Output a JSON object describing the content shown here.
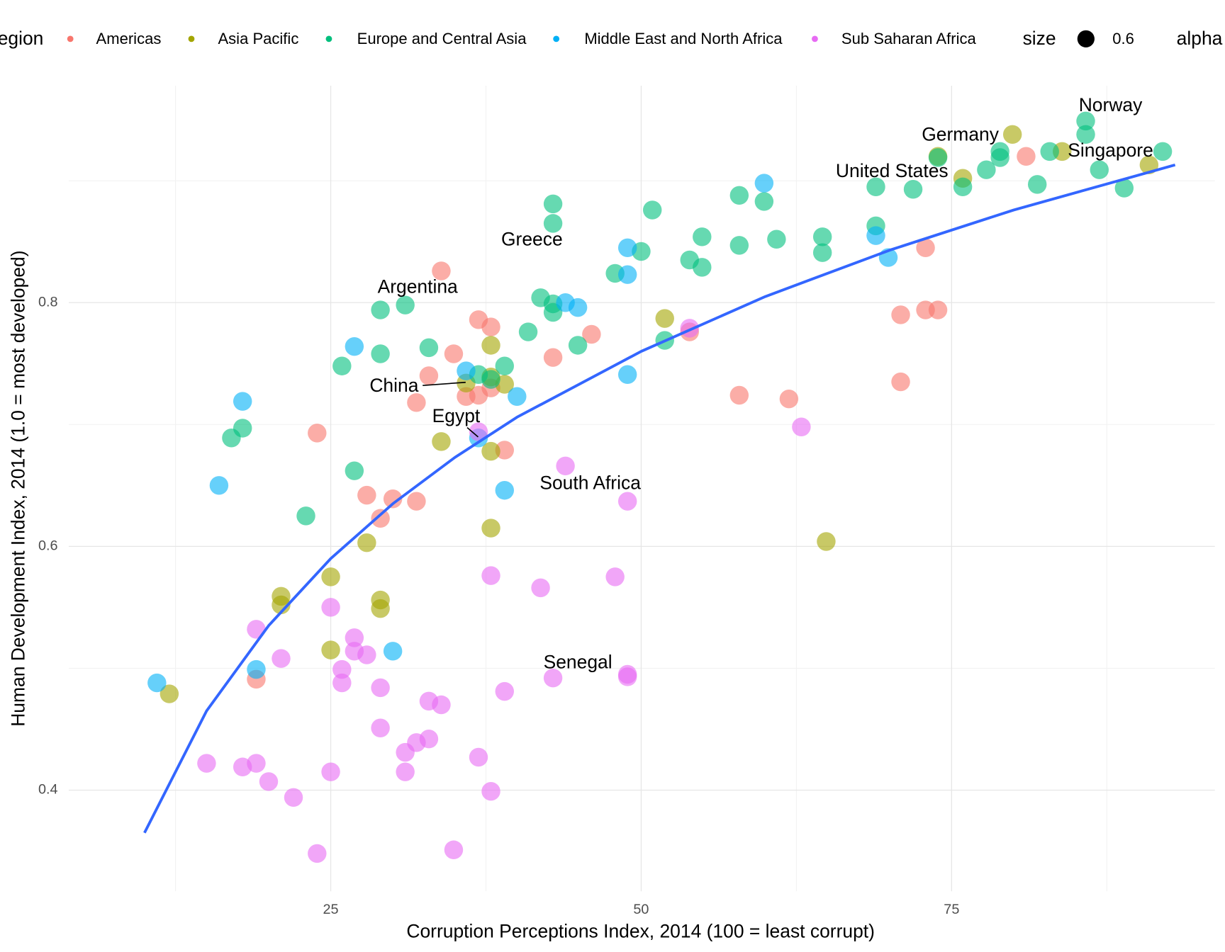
{
  "chart_data": {
    "type": "scatter",
    "x_label": "Corruption Perceptions Index, 2014 (100 = least corrupt)",
    "y_label": "Human Development Index, 2014 (1.0 = most developed)",
    "legend_title": "region",
    "size_title": "size",
    "size_label": 0.6,
    "alpha_title": "alpha",
    "alpha": 0.6,
    "xlim": [
      3.9,
      96.2
    ],
    "ylim": [
      0.317,
      0.978
    ],
    "xticks": [
      25,
      50,
      75
    ],
    "yticks": [
      0.4,
      0.6,
      0.8
    ],
    "xgrid_minor": [
      12.5,
      37.5,
      62.5,
      87.5
    ],
    "ygrid_minor": [
      0.5,
      0.7,
      0.9
    ],
    "grid": true,
    "legend": "top",
    "series": [
      {
        "name": "Americas",
        "color": "#F8766D",
        "x": [
          81.0,
          72.9,
          33.9,
          36.9,
          37.9,
          70.9,
          72.9,
          73.9,
          46.0,
          42.9,
          34.9,
          32.9,
          70.9,
          57.9,
          61.9,
          37.9,
          35.9,
          36.9,
          31.9,
          23.9,
          39.0,
          27.9,
          30.0,
          31.9,
          29.0,
          19.0,
          53.9
        ],
        "values": [
          0.92,
          0.845,
          0.826,
          0.786,
          0.78,
          0.79,
          0.794,
          0.794,
          0.774,
          0.755,
          0.758,
          0.74,
          0.735,
          0.724,
          0.721,
          0.73,
          0.723,
          0.724,
          0.718,
          0.693,
          0.679,
          0.642,
          0.639,
          0.637,
          0.623,
          0.491,
          0.776
        ]
      },
      {
        "name": "Asia Pacific",
        "color": "#A3A500",
        "x": [
          79.9,
          83.9,
          90.9,
          75.9,
          73.9,
          51.9,
          37.9,
          35.9,
          37.9,
          39.0,
          33.9,
          37.9,
          37.9,
          64.9,
          27.9,
          25.0,
          21.0,
          21.0,
          29.0,
          29.0,
          25.0,
          12.0
        ],
        "values": [
          0.938,
          0.924,
          0.913,
          0.902,
          0.92,
          0.787,
          0.765,
          0.734,
          0.739,
          0.733,
          0.686,
          0.678,
          0.615,
          0.604,
          0.603,
          0.575,
          0.559,
          0.552,
          0.556,
          0.549,
          0.515,
          0.479
        ]
      },
      {
        "name": "Europe and Central Asia",
        "color": "#00BF7D",
        "x": [
          85.8,
          85.8,
          92.0,
          82.9,
          78.9,
          78.9,
          73.9,
          77.8,
          86.9,
          81.9,
          75.9,
          71.9,
          68.9,
          88.9,
          57.9,
          59.9,
          42.9,
          42.9,
          50.9,
          68.9,
          54.9,
          60.9,
          64.6,
          57.9,
          50.0,
          64.6,
          53.9,
          54.9,
          47.9,
          41.9,
          42.9,
          42.9,
          31.0,
          29.0,
          40.9,
          44.9,
          51.9,
          32.9,
          29.0,
          25.9,
          39.0,
          36.9,
          37.9,
          17.0,
          17.9,
          26.9,
          23.0
        ],
        "values": [
          0.949,
          0.938,
          0.924,
          0.924,
          0.924,
          0.919,
          0.919,
          0.909,
          0.909,
          0.897,
          0.895,
          0.893,
          0.895,
          0.894,
          0.888,
          0.883,
          0.881,
          0.865,
          0.876,
          0.863,
          0.854,
          0.852,
          0.854,
          0.847,
          0.842,
          0.841,
          0.835,
          0.829,
          0.824,
          0.804,
          0.799,
          0.792,
          0.798,
          0.794,
          0.776,
          0.765,
          0.769,
          0.763,
          0.758,
          0.748,
          0.748,
          0.741,
          0.737,
          0.689,
          0.697,
          0.662,
          0.625
        ]
      },
      {
        "name": "Middle East and North Africa",
        "color": "#00B0F6",
        "x": [
          59.9,
          68.9,
          69.9,
          48.9,
          48.9,
          43.9,
          44.9,
          26.9,
          35.9,
          48.9,
          40.0,
          17.9,
          36.9,
          16.0,
          39.0,
          30.0,
          19.0,
          11.0
        ],
        "values": [
          0.898,
          0.855,
          0.837,
          0.845,
          0.823,
          0.8,
          0.796,
          0.764,
          0.744,
          0.741,
          0.723,
          0.719,
          0.689,
          0.65,
          0.646,
          0.514,
          0.499,
          0.488
        ]
      },
      {
        "name": "Sub Saharan Africa",
        "color": "#E76BF3",
        "x": [
          53.9,
          62.9,
          36.9,
          43.9,
          48.9,
          37.9,
          41.9,
          47.9,
          25.0,
          19.0,
          26.9,
          26.9,
          27.9,
          21.0,
          25.9,
          25.9,
          29.0,
          39.0,
          42.9,
          48.9,
          48.9,
          32.9,
          33.9,
          29.0,
          32.9,
          31.9,
          31.0,
          36.9,
          15.0,
          19.0,
          17.9,
          20.0,
          25.0,
          31.0,
          37.9,
          22.0,
          34.9,
          23.9
        ],
        "values": [
          0.779,
          0.698,
          0.694,
          0.666,
          0.637,
          0.576,
          0.566,
          0.575,
          0.55,
          0.532,
          0.525,
          0.514,
          0.511,
          0.508,
          0.499,
          0.488,
          0.484,
          0.481,
          0.492,
          0.495,
          0.493,
          0.473,
          0.47,
          0.451,
          0.442,
          0.439,
          0.431,
          0.427,
          0.422,
          0.422,
          0.419,
          0.407,
          0.415,
          0.415,
          0.399,
          0.394,
          0.351,
          0.348
        ]
      }
    ],
    "trend": {
      "color": "#3366FF",
      "x": [
        10,
        15,
        20,
        25,
        30,
        35,
        40,
        50,
        60,
        70,
        80,
        93
      ],
      "values": [
        0.365,
        0.465,
        0.535,
        0.59,
        0.635,
        0.673,
        0.706,
        0.76,
        0.805,
        0.843,
        0.876,
        0.913
      ]
    },
    "annotations": [
      {
        "text": "Norway",
        "x": 87.8,
        "y": 0.961
      },
      {
        "text": "Germany",
        "x": 75.7,
        "y": 0.937
      },
      {
        "text": "Singapore",
        "x": 87.8,
        "y": 0.924
      },
      {
        "text": "United States",
        "x": 70.2,
        "y": 0.907
      },
      {
        "text": "Greece",
        "x": 41.2,
        "y": 0.851
      },
      {
        "text": "Argentina",
        "x": 32.0,
        "y": 0.812
      },
      {
        "text": "China",
        "x": 30.1,
        "y": 0.731
      },
      {
        "text": "Egypt",
        "x": 35.1,
        "y": 0.706
      },
      {
        "text": "South Africa",
        "x": 45.9,
        "y": 0.651
      },
      {
        "text": "Senegal",
        "x": 44.9,
        "y": 0.504
      }
    ]
  }
}
